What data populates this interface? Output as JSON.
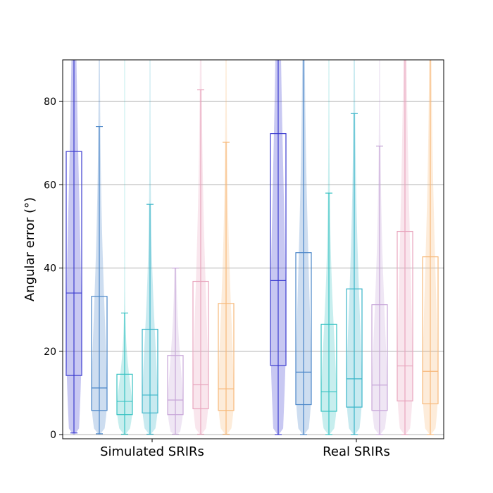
{
  "chart_data": {
    "type": "violin-box",
    "ylabel": "Angular error (°)",
    "ylim": [
      -1,
      90
    ],
    "yticks": [
      "0",
      "20",
      "40",
      "60",
      "80"
    ],
    "grid": "horizontal",
    "groups": [
      {
        "label": "Simulated SRIRs",
        "series": [
          {
            "color": "#3b3bcf",
            "violin_top": 90,
            "q1": 14.2,
            "median": 34,
            "q3": 68,
            "whisker_low": 0.4,
            "whisker_high": 90
          },
          {
            "color": "#4a86c8",
            "violin_top": 90,
            "q1": 5.8,
            "median": 11.2,
            "q3": 33.2,
            "whisker_low": 0.2,
            "whisker_high": 74
          },
          {
            "color": "#36c2c2",
            "violin_top": 90,
            "q1": 4.8,
            "median": 8,
            "q3": 14.5,
            "whisker_low": 0.1,
            "whisker_high": 29.2
          },
          {
            "color": "#3ab5c8",
            "violin_top": 90,
            "q1": 5.2,
            "median": 9.5,
            "q3": 25.3,
            "whisker_low": 0.1,
            "whisker_high": 55.3
          },
          {
            "color": "#c7a6d8",
            "violin_top": 40,
            "q1": 4.8,
            "median": 8.3,
            "q3": 19,
            "whisker_low": 0.1,
            "whisker_high": 40
          },
          {
            "color": "#e8a5bd",
            "violin_top": 90,
            "q1": 6.2,
            "median": 12,
            "q3": 36.8,
            "whisker_low": 0.1,
            "whisker_high": 82.8
          },
          {
            "color": "#f7b97a",
            "violin_top": 90,
            "q1": 5.8,
            "median": 11,
            "q3": 31.5,
            "whisker_low": 0.1,
            "whisker_high": 70.2
          }
        ]
      },
      {
        "label": "Real SRIRs",
        "series": [
          {
            "color": "#3b3bcf",
            "violin_top": 90,
            "q1": 16.6,
            "median": 37,
            "q3": 72.3,
            "whisker_low": 0,
            "whisker_high": 90
          },
          {
            "color": "#4a86c8",
            "violin_top": 90,
            "q1": 7.2,
            "median": 15,
            "q3": 43.7,
            "whisker_low": 0,
            "whisker_high": 90
          },
          {
            "color": "#36c2c2",
            "violin_top": 90,
            "q1": 5.6,
            "median": 10.3,
            "q3": 26.5,
            "whisker_low": 0,
            "whisker_high": 58
          },
          {
            "color": "#3ab5c8",
            "violin_top": 90,
            "q1": 6.6,
            "median": 13.4,
            "q3": 35,
            "whisker_low": 0,
            "whisker_high": 77.1
          },
          {
            "color": "#c7a6d8",
            "violin_top": 90,
            "q1": 5.8,
            "median": 11.9,
            "q3": 31.2,
            "whisker_low": 0,
            "whisker_high": 69.3
          },
          {
            "color": "#e8a5bd",
            "violin_top": 90,
            "q1": 8.1,
            "median": 16.5,
            "q3": 48.8,
            "whisker_low": 0,
            "whisker_high": 90
          },
          {
            "color": "#f7b97a",
            "violin_top": 90,
            "q1": 7.4,
            "median": 15.2,
            "q3": 42.7,
            "whisker_low": 0,
            "whisker_high": 90
          }
        ]
      }
    ]
  }
}
